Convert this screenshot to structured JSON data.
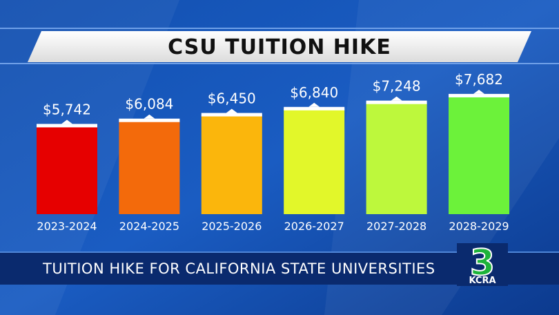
{
  "chart_data": {
    "type": "bar",
    "title": "CSU TUITION HIKE",
    "categories": [
      "2023-2024",
      "2024-2025",
      "2025-2026",
      "2026-2027",
      "2027-2028",
      "2028-2029"
    ],
    "values": [
      5742,
      6084,
      6450,
      6840,
      7248,
      7682
    ],
    "value_labels": [
      "$5,742",
      "$6,084",
      "$6,450",
      "$6,840",
      "$7,248",
      "$7,682"
    ],
    "colors": [
      "#e60000",
      "#f36a0b",
      "#fbb60c",
      "#e2f72a",
      "#bdf83c",
      "#6cf23a"
    ]
  },
  "lower_third": {
    "headline": "TUITION HIKE FOR CALIFORNIA STATE UNIVERSITIES",
    "logo_number": "3",
    "logo_text": "KCRA"
  }
}
